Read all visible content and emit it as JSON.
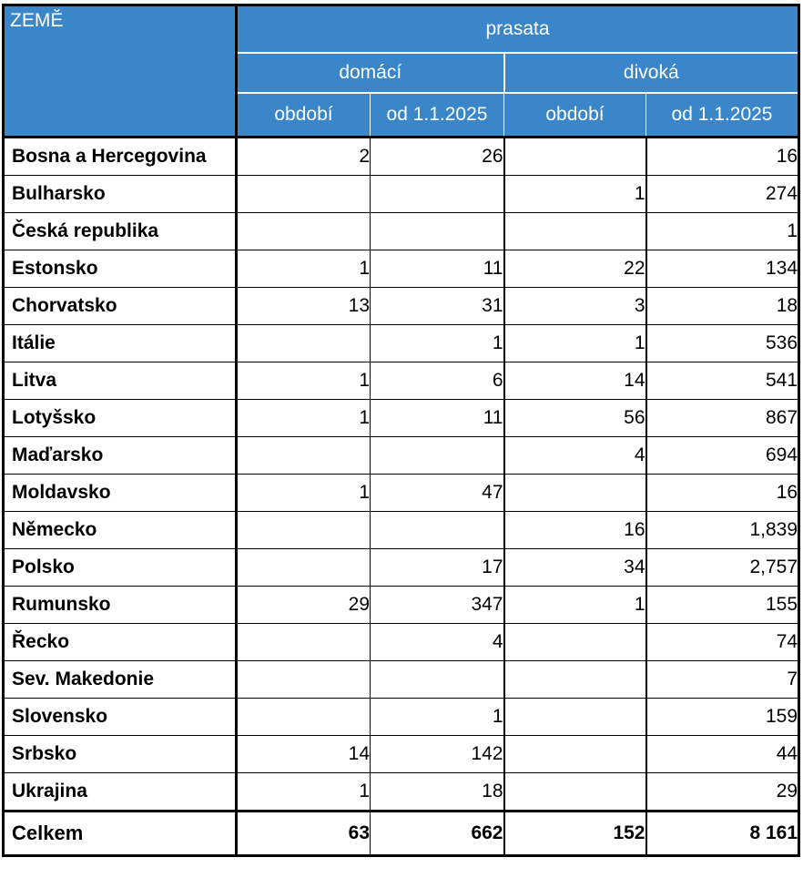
{
  "header": {
    "country_label": "ZEMĚ",
    "group_label": "prasata",
    "sub_domestic": "domácí",
    "sub_wild": "divoká",
    "col_period": "období",
    "col_since": "od 1.1.2025"
  },
  "rows": [
    {
      "country": "Bosna a Hercegovina",
      "d_period": "2",
      "d_since": "26",
      "w_period": "",
      "w_since": "16"
    },
    {
      "country": "Bulharsko",
      "d_period": "",
      "d_since": "",
      "w_period": "1",
      "w_since": "274"
    },
    {
      "country": "Česká republika",
      "d_period": "",
      "d_since": "",
      "w_period": "",
      "w_since": "1"
    },
    {
      "country": "Estonsko",
      "d_period": "1",
      "d_since": "11",
      "w_period": "22",
      "w_since": "134"
    },
    {
      "country": "Chorvatsko",
      "d_period": "13",
      "d_since": "31",
      "w_period": "3",
      "w_since": "18"
    },
    {
      "country": "Itálie",
      "d_period": "",
      "d_since": "1",
      "w_period": "1",
      "w_since": "536"
    },
    {
      "country": "Litva",
      "d_period": "1",
      "d_since": "6",
      "w_period": "14",
      "w_since": "541"
    },
    {
      "country": "Lotyšsko",
      "d_period": "1",
      "d_since": "11",
      "w_period": "56",
      "w_since": "867"
    },
    {
      "country": "Maďarsko",
      "d_period": "",
      "d_since": "",
      "w_period": "4",
      "w_since": "694"
    },
    {
      "country": "Moldavsko",
      "d_period": "1",
      "d_since": "47",
      "w_period": "",
      "w_since": "16"
    },
    {
      "country": "Německo",
      "d_period": "",
      "d_since": "",
      "w_period": "16",
      "w_since": "1,839"
    },
    {
      "country": "Polsko",
      "d_period": "",
      "d_since": "17",
      "w_period": "34",
      "w_since": "2,757"
    },
    {
      "country": "Rumunsko",
      "d_period": "29",
      "d_since": "347",
      "w_period": "1",
      "w_since": "155"
    },
    {
      "country": "Řecko",
      "d_period": "",
      "d_since": "4",
      "w_period": "",
      "w_since": "74"
    },
    {
      "country": "Sev. Makedonie",
      "d_period": "",
      "d_since": "",
      "w_period": "",
      "w_since": "7"
    },
    {
      "country": "Slovensko",
      "d_period": "",
      "d_since": "1",
      "w_period": "",
      "w_since": "159"
    },
    {
      "country": "Srbsko",
      "d_period": "14",
      "d_since": "142",
      "w_period": "",
      "w_since": "44"
    },
    {
      "country": "Ukrajina",
      "d_period": "1",
      "d_since": "18",
      "w_period": "",
      "w_since": "29"
    }
  ],
  "total": {
    "country": "Celkem",
    "d_period": "63",
    "d_since": "662",
    "w_period": "152",
    "w_since": "8 161"
  },
  "colors": {
    "header_bg": "#3a86c8",
    "header_text": "#ffffff"
  }
}
